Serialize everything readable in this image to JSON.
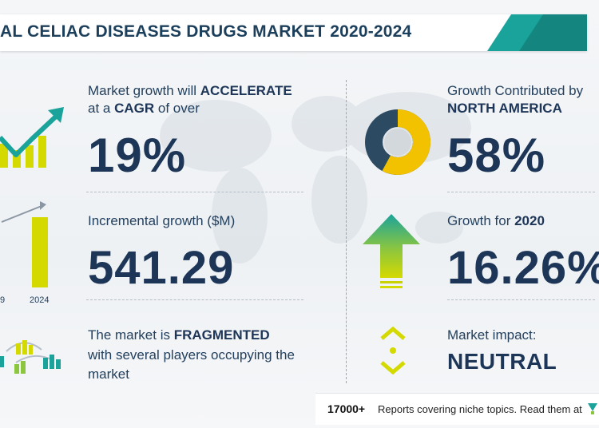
{
  "banner": {
    "title": "AL CELIAC DISEASES DRUGS MARKET 2020-2024",
    "accent_color": "#1aa39a"
  },
  "left": {
    "growth": {
      "line1_prefix": "Market growth will ",
      "line1_bold": "ACCELERATE",
      "line2_prefix": "at a ",
      "line2_bold": "CAGR",
      "line2_suffix": " of over",
      "value": "19%",
      "icon": "growth-trend-bar-icon"
    },
    "incremental": {
      "label": "Incremental growth ($M)",
      "value": "541.29",
      "icon": "bar-chart-comparison-icon",
      "year_start": "9",
      "year_end": "2024"
    },
    "fragmented": {
      "line1_prefix": "The market is ",
      "line1_bold": "FRAGMENTED",
      "line2": "with several players occupying the",
      "line3": "market",
      "icon": "network-buildings-icon"
    }
  },
  "right": {
    "contribution": {
      "line1": "Growth Contributed by",
      "line2_bold": "NORTH AMERICA",
      "value": "58%",
      "icon": "donut-chart-icon"
    },
    "yoy": {
      "label_prefix": "Growth for ",
      "label_bold": "2020",
      "value": "16.26%",
      "icon": "up-arrow-icon"
    },
    "impact": {
      "label": "Market impact:",
      "value": "NEUTRAL",
      "icon": "neutral-chevrons-icon"
    }
  },
  "footer": {
    "count": "17000+",
    "text": "Reports covering niche topics. Read them at",
    "logo_icon": "technavio-logo-icon"
  },
  "colors": {
    "navy": "#1d3557",
    "teal": "#1aa39a",
    "yellow": "#f2c200",
    "green": "#8cc63f"
  }
}
